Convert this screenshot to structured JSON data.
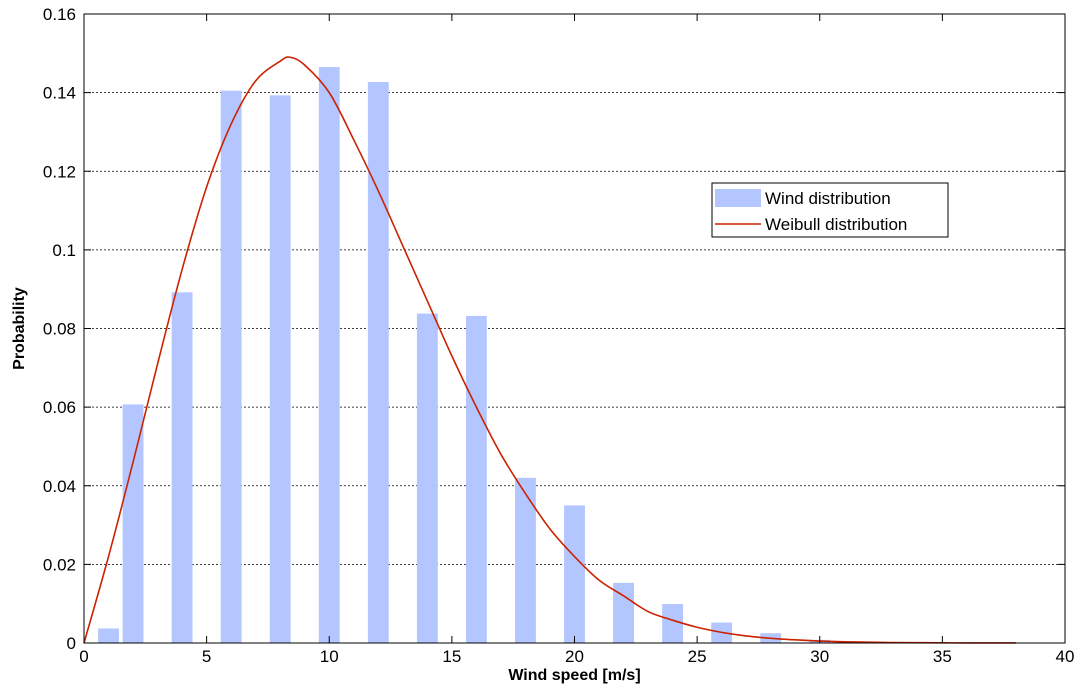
{
  "chart_data": {
    "type": "bar",
    "xlabel": "Wind speed [m/s]",
    "ylabel": "Probability",
    "xlim": [
      0,
      40
    ],
    "ylim": [
      0,
      0.16
    ],
    "xticks": [
      0,
      5,
      10,
      15,
      20,
      25,
      30,
      35,
      40
    ],
    "yticks": [
      0,
      0.02,
      0.04,
      0.06,
      0.08,
      0.1,
      0.12,
      0.14,
      0.16
    ],
    "xtick_labels": [
      "0",
      "5",
      "10",
      "15",
      "20",
      "25",
      "30",
      "35",
      "40"
    ],
    "ytick_labels": [
      "0",
      "0.02",
      "0.04",
      "0.06",
      "0.08",
      "0.1",
      "0.12",
      "0.14",
      "0.16"
    ],
    "grid": "horizontal dotted",
    "legend": {
      "placement": "right",
      "entries": [
        {
          "label": "Wind distribution",
          "kind": "bar",
          "color": "#B3C6FF"
        },
        {
          "label": "Weibull distribution",
          "kind": "line",
          "color": "#CC2200"
        }
      ]
    },
    "series": [
      {
        "name": "Wind distribution",
        "kind": "bar",
        "color": "#B3C6FF",
        "x": [
          1,
          2,
          4,
          6,
          8,
          10,
          12,
          14,
          16,
          18,
          20,
          22,
          24,
          26,
          28,
          30,
          32,
          34,
          36,
          38
        ],
        "values": [
          0.0037,
          0.0607,
          0.0892,
          0.1405,
          0.1393,
          0.1465,
          0.1427,
          0.0838,
          0.0832,
          0.042,
          0.035,
          0.0153,
          0.0099,
          0.0052,
          0.0025,
          0.0008,
          0.0003,
          0.0001,
          0.0001,
          0.0001
        ]
      },
      {
        "name": "Weibull distribution",
        "kind": "line",
        "color": "#CC2200",
        "x": [
          0,
          1,
          2,
          3,
          4,
          5,
          6,
          7,
          8,
          8.4,
          9,
          10,
          11,
          12,
          13,
          14,
          15,
          16,
          17,
          18,
          19,
          20,
          21,
          22,
          23,
          24,
          25,
          26,
          27,
          28,
          29,
          30,
          31,
          32,
          33,
          34,
          35,
          36,
          37,
          38
        ],
        "values": [
          0.0,
          0.022,
          0.046,
          0.071,
          0.095,
          0.116,
          0.132,
          0.143,
          0.148,
          0.149,
          0.147,
          0.14,
          0.128,
          0.115,
          0.101,
          0.087,
          0.073,
          0.06,
          0.048,
          0.038,
          0.029,
          0.022,
          0.016,
          0.012,
          0.008,
          0.0058,
          0.004,
          0.0027,
          0.0018,
          0.0012,
          0.0008,
          0.0005,
          0.0003,
          0.0002,
          0.0001,
          7e-05,
          4e-05,
          2e-05,
          1e-05,
          1e-05
        ]
      }
    ]
  }
}
